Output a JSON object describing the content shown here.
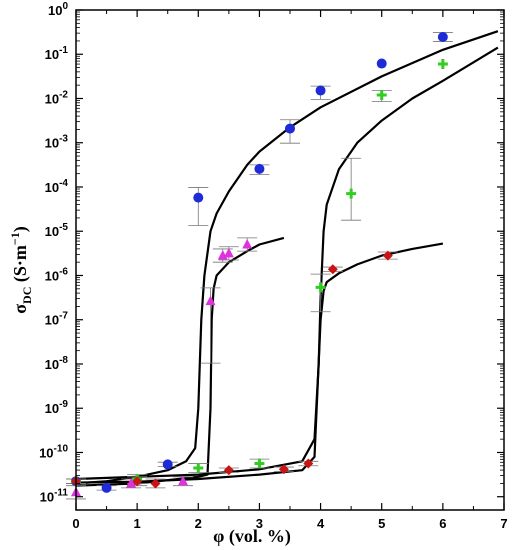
{
  "chart_data": {
    "type": "scatter",
    "xlabel": "φ (vol. %)",
    "ylabel_main": "σ",
    "ylabel_sub": "DC",
    "ylabel_unit": " (S·m",
    "ylabel_exp": "−1",
    "ylabel_close": ")",
    "xlim": [
      0,
      7
    ],
    "ylim_log10": [
      -11.3,
      0
    ],
    "y_scale": "log",
    "grid": false,
    "x_ticks": [
      0,
      1,
      2,
      3,
      4,
      5,
      6,
      7
    ],
    "x_tick_labels": [
      "0",
      "1",
      "2",
      "3",
      "4",
      "5",
      "6",
      "7"
    ],
    "y_tick_exponents": [
      -11,
      -10,
      -9,
      -8,
      -7,
      -6,
      -5,
      -4,
      -3,
      -2,
      -1,
      0
    ],
    "y_tick_base": "10",
    "series": [
      {
        "marker": "circle",
        "color": "#1f2bd6",
        "points": [
          {
            "x": 0,
            "y": -10.65,
            "err": [
              0.05,
              0.05
            ]
          },
          {
            "x": 0.5,
            "y": -10.8,
            "err": [
              0.05,
              0.05
            ]
          },
          {
            "x": 1.5,
            "y": -10.27,
            "err": [
              0.05,
              0.05
            ]
          },
          {
            "x": 2.0,
            "y": -4.24,
            "err": [
              0.63,
              0.23
            ]
          },
          {
            "x": 3.0,
            "y": -3.59,
            "err": [
              0.13,
              0.09
            ]
          },
          {
            "x": 3.5,
            "y": -2.68,
            "err": [
              0.33,
              0.2
            ]
          },
          {
            "x": 4.0,
            "y": -1.82,
            "err": [
              0.2,
              0.1
            ]
          },
          {
            "x": 5.0,
            "y": -1.21,
            "err": [
              0.0,
              0.0
            ]
          },
          {
            "x": 6.0,
            "y": -0.61,
            "err": [
              0.1,
              0.1
            ]
          }
        ]
      },
      {
        "marker": "cross",
        "color": "#33cc22",
        "points": [
          {
            "x": 0,
            "y": -10.65,
            "err": [
              0.05,
              0.05
            ]
          },
          {
            "x": 1.0,
            "y": -10.6,
            "err": [
              0.1,
              0.1
            ]
          },
          {
            "x": 2.0,
            "y": -10.35,
            "err": [
              0.1,
              0.1
            ]
          },
          {
            "x": 3.0,
            "y": -10.25,
            "err": [
              0.1,
              0.1
            ]
          },
          {
            "x": 4.0,
            "y": -6.27,
            "err": [
              0.55,
              0.3
            ]
          },
          {
            "x": 4.5,
            "y": -4.15,
            "err": [
              0.6,
              0.8
            ]
          },
          {
            "x": 5.0,
            "y": -1.92,
            "err": [
              0.15,
              0.1
            ]
          },
          {
            "x": 6.0,
            "y": -1.22,
            "err": [
              0.0,
              0.0
            ]
          }
        ]
      },
      {
        "marker": "diamond",
        "color": "#c81414",
        "points": [
          {
            "x": 0,
            "y": -10.65,
            "err": [
              0.05,
              0.05
            ]
          },
          {
            "x": 1.0,
            "y": -10.65,
            "err": [
              0.1,
              0.1
            ]
          },
          {
            "x": 1.3,
            "y": -10.7,
            "err": [
              0.1,
              0.1
            ]
          },
          {
            "x": 2.5,
            "y": -10.4,
            "err": [
              0.05,
              0.05
            ]
          },
          {
            "x": 3.4,
            "y": -10.38,
            "err": [
              0.05,
              0.05
            ]
          },
          {
            "x": 3.8,
            "y": -10.25,
            "err": [
              0.05,
              0.05
            ]
          },
          {
            "x": 4.2,
            "y": -5.86,
            "err": [
              0.05,
              0.05
            ]
          },
          {
            "x": 5.1,
            "y": -5.55,
            "err": [
              0.08,
              0.08
            ]
          }
        ]
      },
      {
        "marker": "triangle",
        "color": "#e030e0",
        "points": [
          {
            "x": 0,
            "y": -10.9,
            "err": [
              0.15,
              0.15
            ]
          },
          {
            "x": 0.9,
            "y": -10.7,
            "err": [
              0.1,
              0.1
            ]
          },
          {
            "x": 1.75,
            "y": -10.65,
            "err": [
              0.1,
              0.1
            ]
          },
          {
            "x": 2.2,
            "y": -6.58,
            "err": [
              1.4,
              0.3
            ]
          },
          {
            "x": 2.4,
            "y": -5.55,
            "err": [
              0.15,
              0.15
            ]
          },
          {
            "x": 2.5,
            "y": -5.5,
            "err": [
              0.15,
              0.15
            ]
          },
          {
            "x": 2.8,
            "y": -5.3,
            "err": [
              0.15,
              0.15
            ]
          }
        ]
      }
    ],
    "fit_curves": [
      {
        "x": [
          0,
          0.5,
          1.0,
          1.5,
          1.8,
          1.95,
          2.0,
          2.05,
          2.1,
          2.2,
          2.3,
          2.5,
          2.8,
          3.0,
          3.5,
          4.0,
          5.0,
          6.0,
          6.9
        ],
        "y": [
          -10.7,
          -10.65,
          -10.55,
          -10.4,
          -10.2,
          -9.9,
          -9.0,
          -7.0,
          -6.0,
          -5.0,
          -4.6,
          -4.1,
          -3.5,
          -3.2,
          -2.65,
          -2.2,
          -1.5,
          -0.9,
          -0.48
        ]
      },
      {
        "x": [
          0,
          1.0,
          2.0,
          2.15,
          2.2,
          2.22,
          2.25,
          2.3,
          2.5,
          2.8,
          3.0,
          3.4
        ],
        "y": [
          -10.75,
          -10.7,
          -10.55,
          -10.5,
          -9.0,
          -7.0,
          -6.3,
          -6.0,
          -5.7,
          -5.45,
          -5.3,
          -5.15
        ]
      },
      {
        "x": [
          0,
          1.0,
          2.0,
          3.0,
          3.7,
          3.9,
          3.97,
          4.0,
          4.05,
          4.1,
          4.3,
          4.6,
          5.0,
          5.5,
          6.0,
          6.9
        ],
        "y": [
          -10.6,
          -10.55,
          -10.5,
          -10.38,
          -10.2,
          -9.7,
          -8.0,
          -6.5,
          -5.0,
          -4.4,
          -3.6,
          -3.0,
          -2.5,
          -2.0,
          -1.6,
          -0.85
        ]
      },
      {
        "x": [
          0,
          1.0,
          2.0,
          3.0,
          3.7,
          3.9,
          4.0,
          4.05,
          4.1,
          4.3,
          4.6,
          5.0,
          5.5,
          6.0
        ],
        "y": [
          -10.68,
          -10.66,
          -10.6,
          -10.5,
          -10.4,
          -10.1,
          -7.0,
          -6.35,
          -6.15,
          -5.95,
          -5.75,
          -5.55,
          -5.4,
          -5.28
        ]
      }
    ]
  }
}
